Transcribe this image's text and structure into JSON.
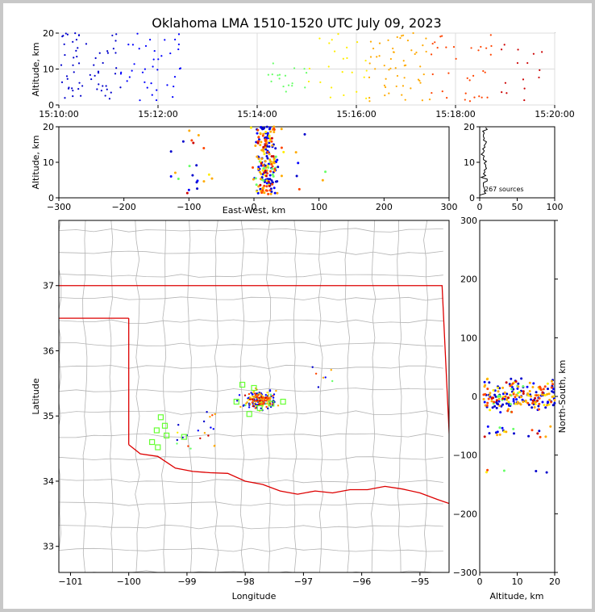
{
  "figure": {
    "title": "Oklahoma LMA 1510-1520 UTC July 09, 2023",
    "sources_note": "267 sources"
  },
  "chart_data": [
    {
      "name": "time-altitude",
      "type": "scatter",
      "ylabel": "Altitude, km",
      "xlim": [
        "15:10:00",
        "15:20:00"
      ],
      "ylim": [
        0,
        20
      ],
      "x_ticks": [
        "15:10:00",
        "15:12:00",
        "15:14:00",
        "15:16:00",
        "15:18:00",
        "15:20:00"
      ],
      "y_ticks": [
        "0",
        "10",
        "20"
      ],
      "grid": true
    },
    {
      "name": "eastwest-altitude",
      "type": "scatter",
      "xlabel": "East-West, km",
      "ylabel": "Altitude, km",
      "xlim": [
        -300,
        300
      ],
      "ylim": [
        0,
        20
      ],
      "x_ticks": [
        "−300",
        "−200",
        "−100",
        "0",
        "100",
        "200",
        "300"
      ],
      "y_ticks": [
        "0",
        "10",
        "20"
      ]
    },
    {
      "name": "altitude-histogram",
      "type": "line",
      "xlim": [
        0,
        100
      ],
      "ylim": [
        0,
        20
      ],
      "x_ticks": [
        "0",
        "50",
        "100"
      ],
      "y_ticks": [
        "0",
        "10",
        "20"
      ]
    },
    {
      "name": "plan-view",
      "type": "scatter",
      "xlabel": "Longitude",
      "ylabel": "Latitude",
      "xlim": [
        -101.2,
        -94.5
      ],
      "ylim": [
        32.6,
        38.0
      ],
      "x_ticks": [
        "−101",
        "−100",
        "−99",
        "−98",
        "−97",
        "−96",
        "−95"
      ],
      "y_ticks": [
        "33",
        "34",
        "35",
        "36",
        "37"
      ],
      "stations_lon_lat": [
        [
          -98.05,
          35.48
        ],
        [
          -97.85,
          35.43
        ],
        [
          -98.15,
          35.22
        ],
        [
          -97.55,
          35.19
        ],
        [
          -97.93,
          35.03
        ],
        [
          -97.75,
          35.12
        ],
        [
          -97.35,
          35.22
        ],
        [
          -99.45,
          34.98
        ],
        [
          -99.52,
          34.78
        ],
        [
          -99.38,
          34.85
        ],
        [
          -99.35,
          34.7
        ],
        [
          -99.05,
          34.68
        ],
        [
          -99.5,
          34.52
        ],
        [
          -99.6,
          34.6
        ]
      ]
    },
    {
      "name": "altitude-northsouth",
      "type": "scatter",
      "xlabel": "Altitude, km",
      "ylabel": "North-South, km",
      "xlim": [
        0,
        20
      ],
      "ylim": [
        -300,
        300
      ],
      "x_ticks": [
        "0",
        "10",
        "20"
      ],
      "y_ticks": [
        "−300",
        "−200",
        "−100",
        "0",
        "100",
        "200",
        "300"
      ]
    }
  ],
  "colors": {
    "time_gradient": [
      "#0000cc",
      "#0000ff",
      "#00ccff",
      "#66ff66",
      "#ffee00",
      "#ffaa00",
      "#ff4400",
      "#cc0000"
    ],
    "state_border": "#dd0000",
    "county_lines": "#b4b4b4",
    "station_marker": "#66ff33"
  }
}
